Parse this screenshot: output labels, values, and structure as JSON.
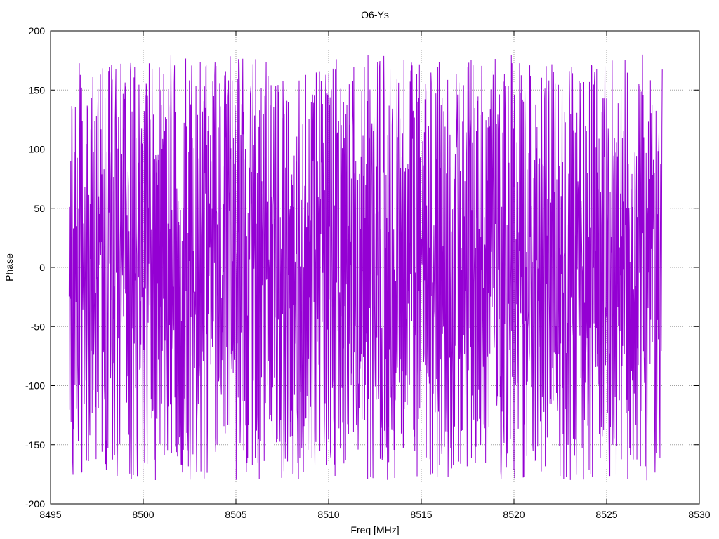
{
  "chart_data": {
    "type": "line",
    "title": "O6-Ys",
    "xlabel": "Freq [MHz]",
    "ylabel": "Phase",
    "xlim": [
      8495,
      8530
    ],
    "ylim": [
      -200,
      200
    ],
    "x_ticks": [
      8495,
      8500,
      8505,
      8510,
      8515,
      8520,
      8525,
      8530
    ],
    "y_ticks": [
      -200,
      -150,
      -100,
      -50,
      0,
      50,
      100,
      150,
      200
    ],
    "x_tick_labels": [
      "8495",
      "8500",
      "8505",
      "8510",
      "8515",
      "8520",
      "8525",
      "8530"
    ],
    "y_tick_labels": [
      "-200",
      "-150",
      "-100",
      "-50",
      "0",
      "50",
      "100",
      "150",
      "200"
    ],
    "grid": true,
    "series_color": "#9400d3",
    "series": [
      {
        "name": "",
        "x_start": 8496.0,
        "x_end": 8528.0,
        "y_min": -180,
        "y_max": 180
      }
    ]
  }
}
